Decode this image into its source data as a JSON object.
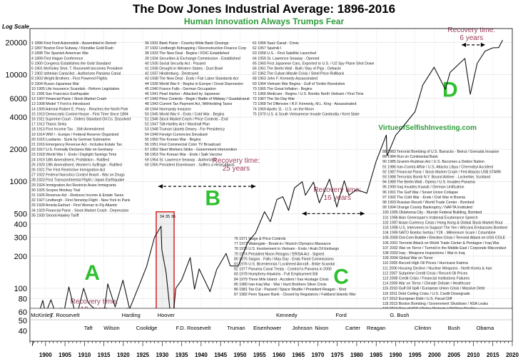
{
  "chart_data": {
    "type": "line",
    "title": "The Dow Jones Industrial Average: 1896-2016",
    "subtitle": "Human Innovation Always Trumps Fear",
    "ylabel": "Log Scale",
    "y_scale": "log",
    "ylim": [
      32,
      27000
    ],
    "xlim": [
      1896,
      2020
    ],
    "y_ticks": [
      40,
      50,
      60,
      80,
      100,
      200,
      300,
      400,
      500,
      1000,
      2000,
      4000,
      6000,
      10000,
      20000
    ],
    "x_ticks": [
      1900,
      1905,
      1910,
      1915,
      1920,
      1925,
      1930,
      1935,
      1940,
      1945,
      1950,
      1955,
      1960,
      1965,
      1970,
      1975,
      1980,
      1985,
      1990,
      1995,
      2000,
      2005,
      2010,
      2015,
      2020
    ],
    "grid": true,
    "watermark": "VirtueofSelfishInvesting.com",
    "series": [
      {
        "x": [
          1896.6,
          1897.5,
          1899.3,
          1900.0,
          1901.4,
          1903.9,
          1906.0,
          1907.9,
          1909.8,
          1911.0,
          1914.9,
          1916.0,
          1917.9,
          1919.9,
          1921.6,
          1924.0,
          1926.0,
          1928.0,
          1929.7,
          1929.9,
          1931.0,
          1932.5,
          1933.5,
          1935.0,
          1937.2,
          1938.3,
          1939.5,
          1942.3,
          1944.0,
          1946.4,
          1947.5,
          1949.5,
          1952.0,
          1954.0,
          1956.3,
          1957.8,
          1959.5,
          1961.0,
          1962.5,
          1964.0,
          1966.0,
          1966.8,
          1968.9,
          1970.4,
          1973.0,
          1974.9,
          1976.8,
          1978.0,
          1980.0,
          1982.6,
          1985.0,
          1987.6,
          1987.8,
          1990.0,
          1992.0,
          1995.0,
          1997.0,
          1999.9,
          2002.8,
          2004.0,
          2007.8,
          2009.2,
          2011.0,
          2013.0,
          2015.0,
          2016.5,
          2017.5
        ],
        "y": [
          29,
          48,
          77,
          58,
          78,
          42,
          103,
          53,
          100,
          73,
          53,
          110,
          67,
          119,
          64,
          105,
          160,
          300,
          381,
          230,
          140,
          41,
          100,
          120,
          194,
          98,
          152,
          93,
          150,
          212,
          162,
          161,
          270,
          330,
          521,
          420,
          679,
          720,
          535,
          870,
          995,
          744,
          985,
          631,
          1051,
          577,
          1015,
          742,
          838,
          777,
          1546,
          2722,
          1738,
          2700,
          3300,
          4500,
          8000,
          11723,
          7286,
          10500,
          14164,
          6547,
          12810,
          16576,
          17823,
          17900,
          21000
        ]
      }
    ],
    "presidents_row1": [
      {
        "name": "McKinley",
        "year": 1899
      },
      {
        "name": "T. Roosevelt",
        "year": 1905
      },
      {
        "name": "Harding",
        "year": 1922
      },
      {
        "name": "Hoover",
        "year": 1931
      },
      {
        "name": "Kennedy",
        "year": 1962
      },
      {
        "name": "Ford",
        "year": 1976
      },
      {
        "name": "G. Bush",
        "year": 1991
      }
    ],
    "presidents_row2": [
      {
        "name": "Taft",
        "year": 1911
      },
      {
        "name": "Wilson",
        "year": 1917
      },
      {
        "name": "Coolidge",
        "year": 1926
      },
      {
        "name": "F.D. Roosevelt",
        "year": 1938
      },
      {
        "name": "Truman",
        "year": 1949
      },
      {
        "name": "Eisenhower",
        "year": 1957
      },
      {
        "name": "Johnson",
        "year": 1966
      },
      {
        "name": "Nixon",
        "year": 1971
      },
      {
        "name": "Carter",
        "year": 1979
      },
      {
        "name": "Reagan",
        "year": 1985
      },
      {
        "name": "Clinton",
        "year": 1997
      },
      {
        "name": "Bush",
        "year": 2005
      },
      {
        "name": "Obama",
        "year": 2013
      }
    ],
    "eras": [
      {
        "label": "A",
        "year": 1912,
        "value": 120
      },
      {
        "label": "B",
        "year": 1943,
        "value": 600
      },
      {
        "label": "C",
        "year": 1976,
        "value": 110
      },
      {
        "label": "D",
        "year": 2004,
        "value": 6200
      }
    ],
    "recovery_periods": [
      {
        "label": "Recovery time:",
        "duration": "19 years",
        "from": 1903,
        "to": 1922,
        "text_year": 1912.5,
        "text_value": 72,
        "arrow_value": 63
      },
      {
        "label": "Recovery time:",
        "duration": "25 years",
        "from": 1929,
        "to": 1954,
        "text_year": 1949,
        "text_value": 1500,
        "arrow_value": 900
      },
      {
        "label": "Recovery time:",
        "duration": "16 years",
        "from": 1966,
        "to": 1982,
        "text_year": 1975,
        "text_value": 800,
        "arrow_value": 500
      },
      {
        "label": "Recovery time:",
        "duration": "6 years",
        "from": 2007,
        "to": 2013,
        "text_year": 2009.5,
        "text_value": 25000,
        "arrow_value": 19000
      }
    ],
    "highlight_box": {
      "from": 1929,
      "to": 1932.5,
      "y_low": 36,
      "y_high": 520,
      "labels": [
        "34",
        "35",
        "36"
      ]
    },
    "events": [
      {
        "col": 0,
        "items": [
          "1 1896 First Ford Automobile - Assembled in Detroit",
          "2 1897 Boston First Subway / Klondike Gold Rush",
          "3 1898 The Spanish American War",
          "4 1899 First Hague Conference",
          "5 1900 Congress Establishes the Gold Standard",
          "6 1901 McKinley Shot, T. Roosevelt becomes President",
          "7 1902 Isthmian Canal Act - Authorizes Panama Canal",
          "8 1903 Wright Brothers - First Powered Flights",
          "9 1904 Russo-Japanese War",
          "10 1905 Life Insurance Scandals - Reform Legislation",
          "11 1906 San Francisco Earthquake",
          "12 1907 Financial Panic / Stock Market Crash",
          "13 1908 Model T Ford is Introduced",
          "14 1909 Admiral Robert E. Peary - Reaches the North Pole",
          "15 1910 Democratic Control House - First Time Since 1894",
          "16 1911 Supreme Court - Orders Standard Oil Co. Dissolved",
          "17 1912 Titanic Sinks",
          "18 1913 First Income Tax - 16th Amendment",
          "19 1914 WW I - Europe / Federal Reserve Organized",
          "20 1915 Lusitania - Sunk by German Submarine",
          "21 1916 Emergency Revenue Act - Includes Estate Tax",
          "22 1917 U.S. Formally Declares War on Germany",
          "23 1918 World War I - Ends / Daylight Savings Time",
          "24 1919 18th Amendment, Prohibition - Ratified",
          "25 1920 19th Amendment, Women's Suffrage - Ratified",
          "26 1921 The First Restrictive Immigration Act",
          "27 1922 Federal Narcotics Control Board - War on Drugs",
          "28 1923 First Transcontinental Flight / Japan Earthquake",
          "29 1924 Immigration Act Restricts Asian Immigrants",
          "30 1925 Scopes Monkey Trial",
          "31 1926 Revenue Act - Reduces Income & Estate Taxes",
          "32 1927 Lindbergh - First Nonstop Flight - New York to Paris",
          "33 1928 Amelia Earhart - First Woman to Fly Atlantic",
          "34 1929 Financial Panic - Stock Market Crash - Depression",
          "35 1930 Smoot-Hawley Tariff"
        ]
      },
      {
        "col": 1,
        "items": [
          "36 1931 Bank Panic - Country-Wide Bank Closings",
          "37 1932 Lindbergh Kidnapping / Reconstruction Finance Corp",
          "38 1933 The New Deal - Begins / FDIC Established",
          "39 1934 Securities & Exchange Commission - Established",
          "40 1935 Social Security Act - Passed",
          "41 1936 Drought in Western States - Dust Bowl",
          "42 1937 Hindenburg - Destroyed",
          "43 1938 The New Deal - Ends / Fair Labor Standards Act",
          "44 1939 World War II - Begins in Europe / Great Depression",
          "45 1940 France Falls - German Occupation",
          "46 1941 Pearl Harbor - Attacked by Japanese",
          "47 1942 Price Controls - Begin / Battle of Midway / Guadalcanal",
          "48 1943 Current Tax Payment Act, Withholding Taxes",
          "49 1944 Normandy Invasion",
          "50 1945 World War II - Ends / Cold War - Begins",
          "51 1946 Stock Market Crash / Price Controls - End",
          "52 1947 Taft-Hartley Act / Marshall Plan",
          "53 1948 Truman Upsets Dewey - For Presidency",
          "54 1949 Foreign Currencies Devalued",
          "55 1950 The Korean War - Begins",
          "56 1951 First Commercial Color TV Broadcast",
          "57 1952 Steel Workers Strike - Government Intervention",
          "58 1953 The Korean War - Ends / Salk Vaccine",
          "59 1954 St. Lawrence Seaway - Authorized",
          "60 1955 President Eisenhower - Suffers a Heart Attack"
        ]
      },
      {
        "col": 2,
        "items": [
          "61 1956 Suez Canal - Crisis",
          "62 1957 Sputnik I",
          "63 1958 U.S. - First Satellite Launched",
          "64 1959 St. Lawrence Seaway - Opened",
          "65 1960 First Japanese Cars, Exported to U.S. / U2 Spy Plane Shot Down",
          "66 1961 The Berlin Wall - Built / Bay of Pigs - Debacle",
          "67 1962 The Cuban Missile Crisis / Steel Price Rollback",
          "68 1963 John F. Kennedy Assassinated",
          "69 1964 Vietnam War Begins - Gulf of Tonkin Resolution",
          "70 1965 The Great Inflation - Begins",
          "71 1966 Medicare - Begins / U.S. Bombs North Vietnam / First Time",
          "72 1967 The Six Day War",
          "73 1968 Tet Offensive / R.F. Kennedy, M.L. King - Assassinated",
          "74 1969 Apollo 11 - U.S. on the Moon",
          "75 1970 U.S. & South Vietnamese Invade Cambodia / Kent State"
        ]
      },
      {
        "col": 3,
        "items": [
          "76 1971 Wage & Price Controls",
          "77 1972 Watergate - Break-in / Munich Olympics Massacre",
          "78 1973 U.S. Involvement in Vietnam - Ends / Arab Oil Embargo",
          "79 1974 President Nixon Resigns / ERISA Act - Signed",
          "80 1975 Saigon - Falls / May Day - Ends Fixed Commissions",
          "81 1976 U.S. Bicentennial / Lockheed Aircraft - Bribe Scandal",
          "82 1977 Panama Canal Treaty - Control to Panama in 2000",
          "83 1978 Humphrey-Hawkins - Full Employment Bill",
          "84 1979 Three Mile Island - Accident / Iran Hostage Crisis",
          "85 1980 Iran-Iraq War - War / Hunt Brothers Silver Crisis",
          "86 1981 Tax Cut - Passed / Space Shuttle / President Reagan - Shot",
          "87 1982 Penn Square Bank - Closed by Regulators / Falkland Islands War"
        ]
      },
      {
        "col": 4,
        "items": [
          "88 1983 Terrorist Bombing of U.S. Barracks - Beirut / Grenada Invasion",
          "89 1984 Run on Continental Bank",
          "90 1985 Gramm-Rudman Act / U.S. Becomes a Debtor Nation",
          "91 1986 Iran-Contra Affair / U.S. Attacks Libya / Chernobyl Accident",
          "92 1987 Financial Panic / Stock Market Crash / Fed Attacks US$ STARK",
          "93 1988 Terrorists Bomb N.Y. Bound Airliner - Lockerbie, Scotland",
          "94 1989 The Berlin Wall - Opens / U.S. Invades Panama",
          "95 1990 Iraq Invades Kuwait / German Unification",
          "96 1991 The Gulf War / Soviet Union Collapse",
          "97 1992 The Cold War - Ends / Civil War in Bosnia",
          "98 1993 Russian Revolt / World Trade Center - Bombed",
          "99 1994 Orange County Bankruptcy / NAFTA Instituted",
          "100 1995 Oklahoma City - Murrah Federal Building, Bombed",
          "101 1996 Alan Greenspan's Irrational Exuberance Speech",
          "102 1997 Asian Currency Crisis / Hong Kong & Global Stock Market Rout",
          "103 1998 U.S. Intervenes to Support The Yen / Africans Embassies Bombed",
          "104 1999 NATO Bombs Serbia / Y2K - Millennium Scare / Columbine",
          "105 2000 Dot-Com Bubble / Election Crisis / Terrorist Attack on USS COLE",
          "106 2001 Terrorist Attack on World Trade Center & Pentagon / Iraq War",
          "107 2002 War on Terror / Turmoil in the Middle East / Corporate Misconduct",
          "108 2003 Iraq - Weapons Inspections / War in Iraq",
          "109 2004 Global War on Terror",
          "110 2005 Record High Oil Prices / Hurricane Katrina",
          "111 2006 Housing Decline / Nuclear Weapons - North Korea & Iran",
          "112 2007 Subprime Credit Crisis / Record Oil Prices",
          "113 2008 Credit Crisis / Financial Institutions Failures",
          "114 2009 War on Terror / Climate Debate / Healthcare",
          "115 2010 Gulf Oil Spill / European Union Crisis / Massive Debt",
          "116 2011 Debt Ceiling Crisis / U.S. Credit Downgrade",
          "117 2012 European Debt / U.S. Fiscal Cliff",
          "118 2013 Boston Bombing / Government Shutdown / NSA Leaks",
          "119 2014 Rise of ISIS / Police Protests / Oil Price Decline",
          "120 2015 Terror Attacks / Refugee Crisis / China Slowdown / Fed Rate Hike",
          "121 2016 Brexit / Cuban Embassy Opened / Elections"
        ]
      }
    ]
  }
}
